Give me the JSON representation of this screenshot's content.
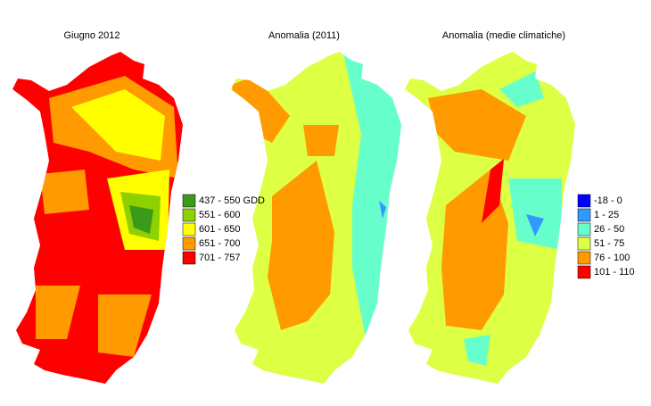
{
  "panels": [
    {
      "title": "Giugno 2012"
    },
    {
      "title": "Anomalia (2011)"
    },
    {
      "title": "Anomalia (medie climatiche)"
    }
  ],
  "legends": [
    {
      "items": [
        {
          "label": "437 - 550 GDD",
          "color": "#3a9a1a"
        },
        {
          "label": "551 - 600",
          "color": "#8fd000"
        },
        {
          "label": "601 - 650",
          "color": "#ffff00"
        },
        {
          "label": "651 - 700",
          "color": "#ff9a00"
        },
        {
          "label": "701 - 757",
          "color": "#ff0000"
        }
      ]
    },
    {
      "items": [
        {
          "label": "-18 - 0",
          "color": "#0000ff"
        },
        {
          "label": "1 - 25",
          "color": "#3399ff"
        },
        {
          "label": "26 - 50",
          "color": "#66ffcc"
        },
        {
          "label": "51 - 75",
          "color": "#ddff44"
        },
        {
          "label": "76 - 100",
          "color": "#ff9a00"
        },
        {
          "label": "101 - 110",
          "color": "#ff0000"
        }
      ]
    }
  ]
}
